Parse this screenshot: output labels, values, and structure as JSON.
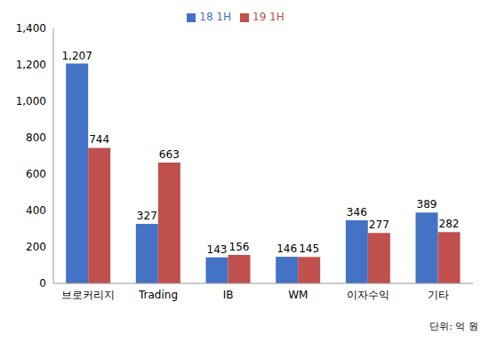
{
  "chart_data": {
    "type": "bar",
    "categories": [
      "브로커리지",
      "Trading",
      "IB",
      "WM",
      "이자수익",
      "기타"
    ],
    "series": [
      {
        "name": "18 1H",
        "color": "#4472c4",
        "values": [
          1207,
          327,
          143,
          146,
          346,
          389
        ],
        "value_labels": [
          "1,207",
          "327",
          "143",
          "146",
          "346",
          "389"
        ]
      },
      {
        "name": "19 1H",
        "color": "#c0504d",
        "values": [
          744,
          663,
          156,
          145,
          277,
          282
        ],
        "value_labels": [
          "744",
          "663",
          "156",
          "145",
          "277",
          "282"
        ]
      }
    ],
    "ylim": [
      0,
      1400
    ],
    "yticks": [
      0,
      200,
      400,
      600,
      800,
      {
        "value": 1000,
        "label": "1,000"
      },
      {
        "value": 1200,
        "label": "1,200"
      },
      {
        "value": 1400,
        "label": "1,400"
      }
    ],
    "grid": false,
    "legend": "top",
    "data_labels": true,
    "annotations": [
      "단위: 억 원"
    ]
  }
}
